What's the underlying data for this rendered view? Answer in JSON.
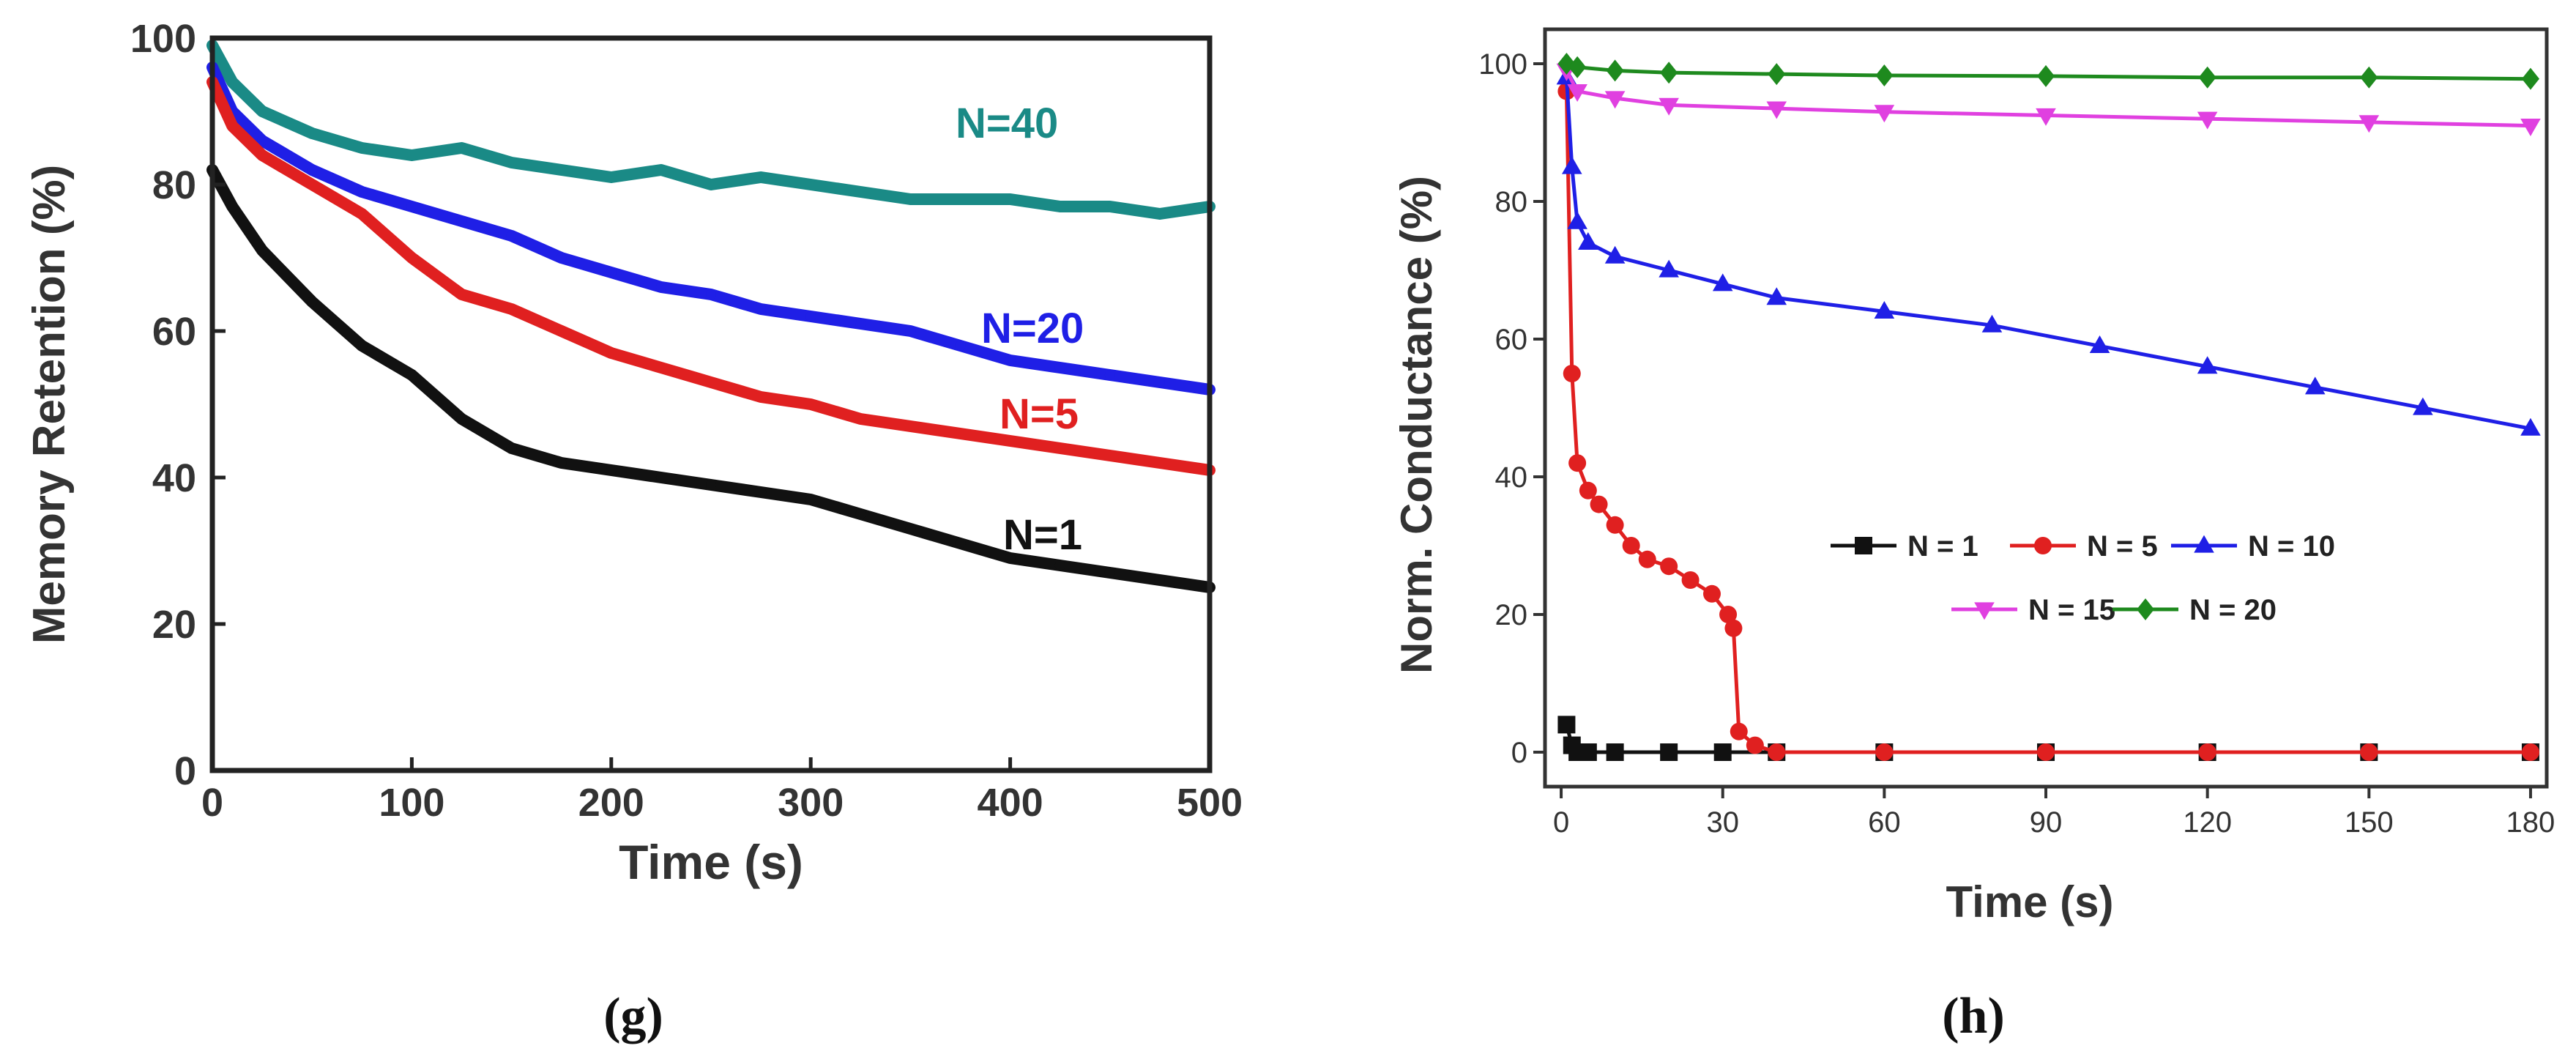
{
  "chart_data": [
    {
      "panel": "(g)",
      "type": "line",
      "title": "",
      "xlabel": "Time (s)",
      "ylabel": "Memory Retention (%)",
      "xlim": [
        0,
        500
      ],
      "ylim": [
        0,
        100
      ],
      "xticks": [
        0,
        100,
        200,
        300,
        400,
        500
      ],
      "yticks": [
        0,
        20,
        40,
        60,
        80,
        100
      ],
      "grid": false,
      "legend": "inline labels",
      "series": [
        {
          "name": "N=40",
          "color": "#1a8a86",
          "x": [
            0,
            10,
            25,
            50,
            75,
            100,
            125,
            150,
            175,
            200,
            225,
            250,
            275,
            300,
            325,
            350,
            375,
            400,
            425,
            450,
            475,
            500
          ],
          "y": [
            99,
            94,
            90,
            87,
            85,
            84,
            85,
            83,
            82,
            81,
            82,
            80,
            81,
            80,
            79,
            78,
            78,
            78,
            77,
            77,
            76,
            77
          ]
        },
        {
          "name": "N=20",
          "color": "#1f1fe6",
          "x": [
            0,
            10,
            25,
            50,
            75,
            100,
            125,
            150,
            175,
            200,
            225,
            250,
            275,
            300,
            325,
            350,
            375,
            400,
            425,
            450,
            475,
            500
          ],
          "y": [
            96,
            90,
            86,
            82,
            79,
            77,
            75,
            73,
            70,
            68,
            66,
            65,
            63,
            62,
            61,
            60,
            58,
            56,
            55,
            54,
            53,
            52
          ]
        },
        {
          "name": "N=5",
          "color": "#e02020",
          "x": [
            0,
            10,
            25,
            50,
            75,
            100,
            125,
            150,
            175,
            200,
            225,
            250,
            275,
            300,
            325,
            350,
            375,
            400,
            425,
            450,
            475,
            500
          ],
          "y": [
            94,
            88,
            84,
            80,
            76,
            70,
            65,
            63,
            60,
            57,
            55,
            53,
            51,
            50,
            48,
            47,
            46,
            45,
            44,
            43,
            42,
            41
          ]
        },
        {
          "name": "N=1",
          "color": "#111111",
          "x": [
            0,
            10,
            25,
            50,
            75,
            100,
            125,
            150,
            175,
            200,
            225,
            250,
            275,
            300,
            325,
            350,
            375,
            400,
            425,
            450,
            475,
            500
          ],
          "y": [
            82,
            77,
            71,
            64,
            58,
            54,
            48,
            44,
            42,
            41,
            40,
            39,
            38,
            37,
            35,
            33,
            31,
            29,
            28,
            27,
            26,
            25
          ]
        }
      ]
    },
    {
      "panel": "(h)",
      "type": "line",
      "title": "",
      "xlabel": "Time (s)",
      "ylabel": "Norm. Conductance (%)",
      "xlim": [
        -3,
        183
      ],
      "ylim": [
        -5,
        105
      ],
      "xticks": [
        0,
        30,
        60,
        90,
        120,
        150,
        180
      ],
      "yticks": [
        0,
        20,
        40,
        60,
        80,
        100
      ],
      "grid": false,
      "legend": "lower-right",
      "series": [
        {
          "name": "N = 1",
          "color": "#111111",
          "marker": "square",
          "x": [
            1,
            2,
            3,
            5,
            10,
            20,
            30,
            40,
            60,
            90,
            120,
            150,
            180
          ],
          "y": [
            4,
            1,
            0,
            0,
            0,
            0,
            0,
            0,
            0,
            0,
            0,
            0,
            0
          ]
        },
        {
          "name": "N = 5",
          "color": "#e02020",
          "marker": "circle",
          "x": [
            1,
            2,
            3,
            5,
            7,
            10,
            13,
            16,
            20,
            24,
            28,
            31,
            32,
            33,
            36,
            40,
            60,
            90,
            120,
            150,
            180
          ],
          "y": [
            96,
            55,
            42,
            38,
            36,
            33,
            30,
            28,
            27,
            25,
            23,
            20,
            18,
            3,
            1,
            0,
            0,
            0,
            0,
            0,
            0
          ]
        },
        {
          "name": "N = 10",
          "color": "#1f1fe6",
          "marker": "triangle-up",
          "x": [
            1,
            2,
            3,
            5,
            10,
            20,
            30,
            40,
            60,
            80,
            100,
            120,
            140,
            160,
            180
          ],
          "y": [
            98,
            85,
            77,
            74,
            72,
            70,
            68,
            66,
            64,
            62,
            59,
            56,
            53,
            50,
            47
          ]
        },
        {
          "name": "N = 15",
          "color": "#e040e0",
          "marker": "triangle-down",
          "x": [
            1,
            3,
            10,
            20,
            40,
            60,
            90,
            120,
            150,
            180
          ],
          "y": [
            99,
            96,
            95,
            94,
            93.5,
            93,
            92.5,
            92,
            91.5,
            91
          ]
        },
        {
          "name": "N = 20",
          "color": "#1e8a1e",
          "marker": "diamond",
          "x": [
            1,
            3,
            10,
            20,
            40,
            60,
            90,
            120,
            150,
            180
          ],
          "y": [
            100,
            99.5,
            99,
            98.7,
            98.5,
            98.3,
            98.2,
            98,
            98,
            97.8
          ]
        }
      ]
    }
  ]
}
